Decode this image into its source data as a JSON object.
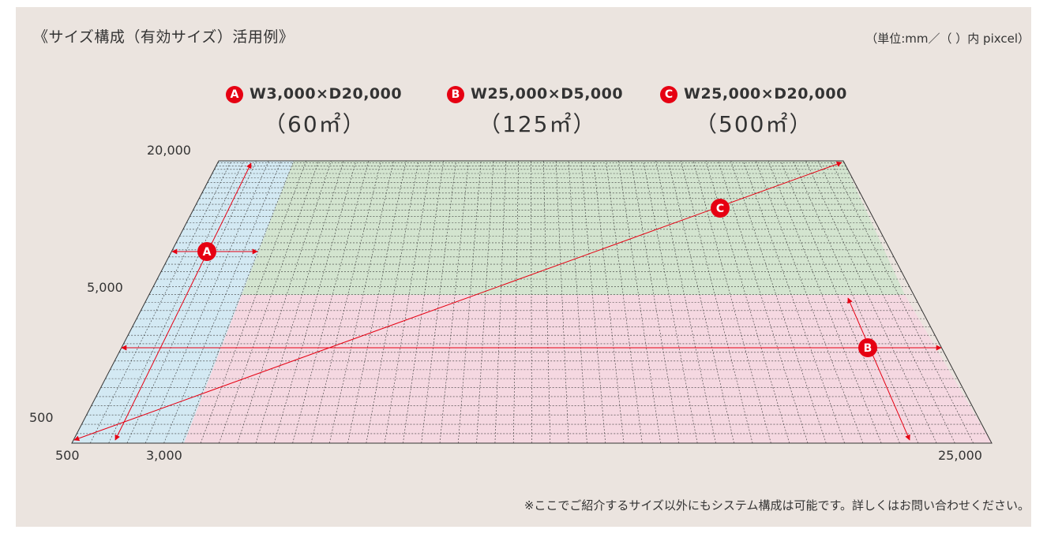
{
  "title": "《サイズ構成（有効サイズ）活用例》",
  "units_note": "（単位:mm／（ ）内 pixcel）",
  "specs": [
    {
      "badge": "A",
      "dimensions": "W3,000×D20,000",
      "area": "（60㎡）"
    },
    {
      "badge": "B",
      "dimensions": "W25,000×D5,000",
      "area": "（125㎡）"
    },
    {
      "badge": "C",
      "dimensions": "W25,000×D20,000",
      "area": "（500㎡）"
    }
  ],
  "axis": {
    "y_labels": [
      "20,000",
      "5,000",
      "500"
    ],
    "x_labels": [
      "500",
      "3,000",
      "25,000"
    ]
  },
  "diagram_badges": [
    "A",
    "B",
    "C"
  ],
  "colors": {
    "panel": "#ebe4df",
    "region_a": "#d3e9f3",
    "region_b": "#f5d8e1",
    "region_c": "#d3e4cf",
    "accent": "#e60012",
    "grid": "#3a3a3a"
  },
  "footer_note": "※ここでご紹介するサイズ以外にもシステム構成は可能です。詳しくはお問い合わせください。"
}
